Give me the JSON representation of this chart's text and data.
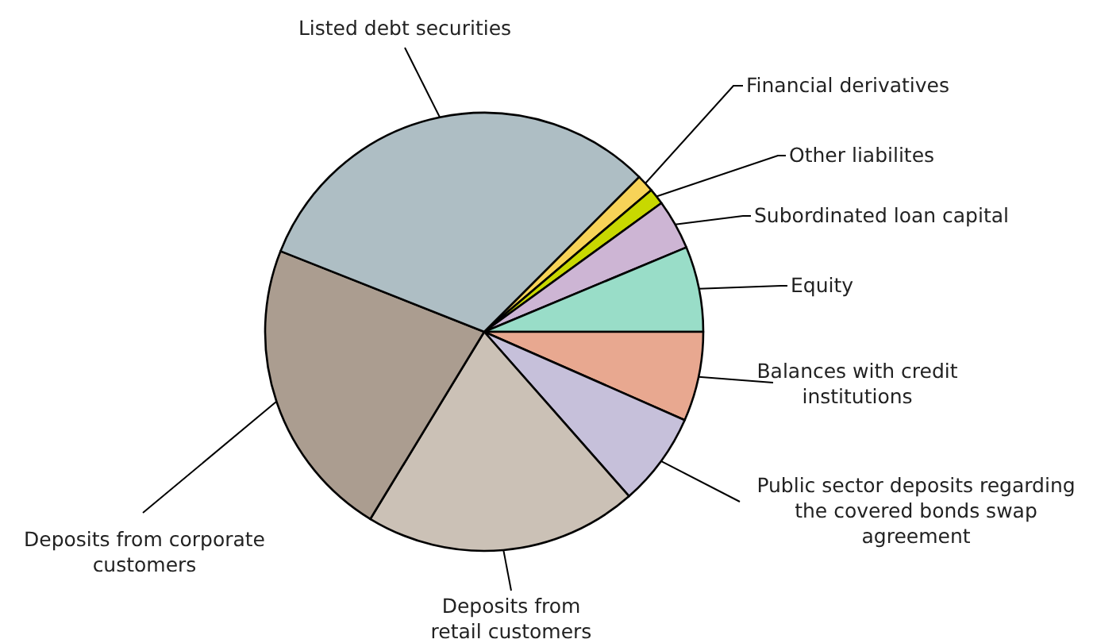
{
  "chart_data": {
    "type": "pie",
    "categories": [
      "Financial derivatives",
      "Other liabilites",
      "Subordinated loan capital",
      "Equity",
      "Balances with credit institutions",
      "Public sector deposits regarding the covered bonds swap agreement",
      "Deposits from retail customers",
      "Deposits from corporate customers",
      "Listed debt securities"
    ],
    "values": [
      1.3,
      1.2,
      3.7,
      6.3,
      6.6,
      6.9,
      20.2,
      22.3,
      31.5
    ],
    "colors": [
      "#f7d358",
      "#c8d800",
      "#cdb5d4",
      "#99ddc8",
      "#e8a890",
      "#c6c0da",
      "#cbc1b6",
      "#ab9d90",
      "#aebec4"
    ]
  }
}
